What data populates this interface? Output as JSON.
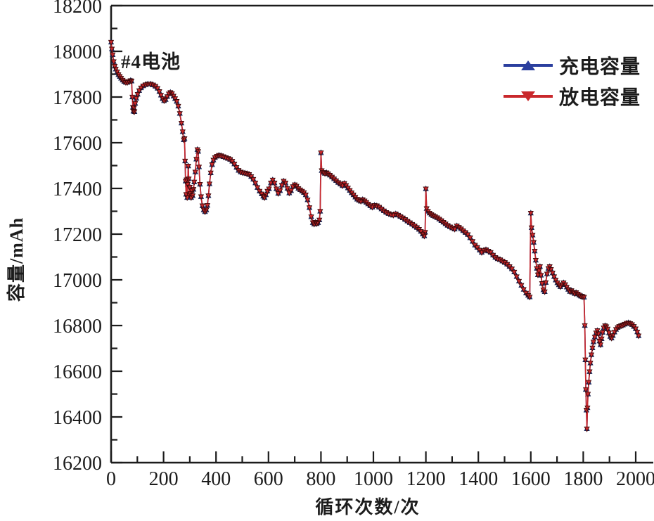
{
  "chart_data": {
    "type": "line",
    "title": "",
    "xlabel": "循环次数/次",
    "ylabel": "容量/mAh",
    "annotation": "#4电池",
    "xlim": [
      0,
      2070
    ],
    "ylim": [
      16200,
      18200
    ],
    "x_major_ticks": [
      0,
      200,
      400,
      600,
      800,
      1000,
      1200,
      1400,
      1600,
      1800,
      2000
    ],
    "x_minor_tick_step": 100,
    "y_major_ticks": [
      16200,
      16400,
      16600,
      16800,
      17000,
      17200,
      17400,
      17600,
      17800,
      18000,
      18200
    ],
    "y_minor_tick_step": 100,
    "grid": false,
    "legend_position": "top-right",
    "axis_color": "#1c1c1c",
    "series": [
      {
        "name": "充电容量",
        "color": "#2B3F9E",
        "marker_edge": "#17224f",
        "marker": "triangle-up",
        "points_key": "shared_points"
      },
      {
        "name": "放电容量",
        "color": "#C9282C",
        "marker_edge": "#3f090b",
        "marker": "triangle-down",
        "points_key": "shared_points"
      }
    ],
    "shared_points": [
      [
        0,
        18040
      ],
      [
        3,
        18010
      ],
      [
        6,
        17985
      ],
      [
        10,
        17955
      ],
      [
        14,
        17935
      ],
      [
        18,
        17922
      ],
      [
        23,
        17910
      ],
      [
        28,
        17898
      ],
      [
        33,
        17890
      ],
      [
        38,
        17882
      ],
      [
        44,
        17874
      ],
      [
        50,
        17868
      ],
      [
        56,
        17864
      ],
      [
        62,
        17864
      ],
      [
        68,
        17868
      ],
      [
        74,
        17872
      ],
      [
        78,
        17870
      ],
      [
        81,
        17800
      ],
      [
        83,
        17755
      ],
      [
        85,
        17738
      ],
      [
        87,
        17752
      ],
      [
        89,
        17736
      ],
      [
        92,
        17772
      ],
      [
        96,
        17794
      ],
      [
        101,
        17812
      ],
      [
        107,
        17828
      ],
      [
        114,
        17840
      ],
      [
        122,
        17849
      ],
      [
        131,
        17854
      ],
      [
        140,
        17857
      ],
      [
        150,
        17857
      ],
      [
        160,
        17853
      ],
      [
        169,
        17847
      ],
      [
        177,
        17838
      ],
      [
        184,
        17824
      ],
      [
        190,
        17808
      ],
      [
        196,
        17793
      ],
      [
        202,
        17784
      ],
      [
        208,
        17789
      ],
      [
        214,
        17802
      ],
      [
        220,
        17814
      ],
      [
        226,
        17820
      ],
      [
        232,
        17815
      ],
      [
        238,
        17804
      ],
      [
        244,
        17793
      ],
      [
        250,
        17781
      ],
      [
        256,
        17760
      ],
      [
        262,
        17728
      ],
      [
        268,
        17686
      ],
      [
        273,
        17648
      ],
      [
        277,
        17613
      ],
      [
        280,
        17618
      ],
      [
        282,
        17520
      ],
      [
        284,
        17432
      ],
      [
        286,
        17374
      ],
      [
        288,
        17438
      ],
      [
        290,
        17360
      ],
      [
        292,
        17418
      ],
      [
        294,
        17498
      ],
      [
        296,
        17442
      ],
      [
        298,
        17372
      ],
      [
        300,
        17406
      ],
      [
        302,
        17378
      ],
      [
        305,
        17360
      ],
      [
        308,
        17390
      ],
      [
        311,
        17368
      ],
      [
        314,
        17396
      ],
      [
        317,
        17428
      ],
      [
        321,
        17472
      ],
      [
        325,
        17528
      ],
      [
        329,
        17570
      ],
      [
        332,
        17562
      ],
      [
        335,
        17494
      ],
      [
        339,
        17418
      ],
      [
        343,
        17364
      ],
      [
        348,
        17324
      ],
      [
        353,
        17306
      ],
      [
        358,
        17298
      ],
      [
        363,
        17306
      ],
      [
        367,
        17326
      ],
      [
        371,
        17368
      ],
      [
        375,
        17420
      ],
      [
        380,
        17468
      ],
      [
        385,
        17504
      ],
      [
        390,
        17524
      ],
      [
        396,
        17535
      ],
      [
        403,
        17541
      ],
      [
        411,
        17545
      ],
      [
        419,
        17543
      ],
      [
        428,
        17539
      ],
      [
        437,
        17535
      ],
      [
        446,
        17531
      ],
      [
        454,
        17527
      ],
      [
        462,
        17519
      ],
      [
        470,
        17507
      ],
      [
        478,
        17492
      ],
      [
        486,
        17479
      ],
      [
        494,
        17472
      ],
      [
        502,
        17469
      ],
      [
        510,
        17467
      ],
      [
        518,
        17465
      ],
      [
        526,
        17461
      ],
      [
        534,
        17452
      ],
      [
        542,
        17440
      ],
      [
        550,
        17424
      ],
      [
        558,
        17404
      ],
      [
        566,
        17388
      ],
      [
        574,
        17376
      ],
      [
        580,
        17366
      ],
      [
        585,
        17360
      ],
      [
        590,
        17372
      ],
      [
        596,
        17388
      ],
      [
        602,
        17398
      ],
      [
        609,
        17424
      ],
      [
        616,
        17437
      ],
      [
        623,
        17424
      ],
      [
        630,
        17398
      ],
      [
        637,
        17378
      ],
      [
        644,
        17390
      ],
      [
        651,
        17414
      ],
      [
        658,
        17432
      ],
      [
        665,
        17424
      ],
      [
        672,
        17400
      ],
      [
        679,
        17380
      ],
      [
        686,
        17390
      ],
      [
        693,
        17408
      ],
      [
        700,
        17416
      ],
      [
        707,
        17410
      ],
      [
        714,
        17400
      ],
      [
        721,
        17394
      ],
      [
        728,
        17388
      ],
      [
        735,
        17382
      ],
      [
        742,
        17372
      ],
      [
        749,
        17350
      ],
      [
        756,
        17316
      ],
      [
        763,
        17276
      ],
      [
        769,
        17250
      ],
      [
        774,
        17244
      ],
      [
        779,
        17252
      ],
      [
        784,
        17246
      ],
      [
        789,
        17250
      ],
      [
        794,
        17262
      ],
      [
        797,
        17300
      ],
      [
        800,
        17556
      ],
      [
        803,
        17478
      ],
      [
        809,
        17470
      ],
      [
        815,
        17466
      ],
      [
        821,
        17469
      ],
      [
        827,
        17464
      ],
      [
        834,
        17458
      ],
      [
        842,
        17450
      ],
      [
        850,
        17442
      ],
      [
        858,
        17434
      ],
      [
        866,
        17426
      ],
      [
        874,
        17419
      ],
      [
        882,
        17412
      ],
      [
        889,
        17422
      ],
      [
        896,
        17413
      ],
      [
        903,
        17402
      ],
      [
        910,
        17391
      ],
      [
        917,
        17381
      ],
      [
        924,
        17372
      ],
      [
        931,
        17362
      ],
      [
        938,
        17353
      ],
      [
        945,
        17348
      ],
      [
        952,
        17344
      ],
      [
        959,
        17351
      ],
      [
        966,
        17346
      ],
      [
        973,
        17339
      ],
      [
        980,
        17332
      ],
      [
        988,
        17324
      ],
      [
        996,
        17318
      ],
      [
        1004,
        17326
      ],
      [
        1013,
        17324
      ],
      [
        1022,
        17318
      ],
      [
        1031,
        17310
      ],
      [
        1040,
        17302
      ],
      [
        1049,
        17295
      ],
      [
        1058,
        17290
      ],
      [
        1067,
        17286
      ],
      [
        1076,
        17283
      ],
      [
        1085,
        17289
      ],
      [
        1094,
        17283
      ],
      [
        1103,
        17277
      ],
      [
        1112,
        17271
      ],
      [
        1121,
        17264
      ],
      [
        1130,
        17257
      ],
      [
        1139,
        17250
      ],
      [
        1148,
        17243
      ],
      [
        1157,
        17236
      ],
      [
        1166,
        17229
      ],
      [
        1174,
        17221
      ],
      [
        1181,
        17212
      ],
      [
        1188,
        17200
      ],
      [
        1194,
        17192
      ],
      [
        1197,
        17208
      ],
      [
        1200,
        17398
      ],
      [
        1203,
        17312
      ],
      [
        1208,
        17300
      ],
      [
        1214,
        17292
      ],
      [
        1221,
        17286
      ],
      [
        1228,
        17281
      ],
      [
        1235,
        17277
      ],
      [
        1243,
        17272
      ],
      [
        1251,
        17266
      ],
      [
        1259,
        17259
      ],
      [
        1267,
        17252
      ],
      [
        1275,
        17245
      ],
      [
        1283,
        17238
      ],
      [
        1292,
        17232
      ],
      [
        1301,
        17227
      ],
      [
        1310,
        17222
      ],
      [
        1318,
        17236
      ],
      [
        1326,
        17230
      ],
      [
        1334,
        17223
      ],
      [
        1342,
        17215
      ],
      [
        1351,
        17207
      ],
      [
        1360,
        17198
      ],
      [
        1369,
        17184
      ],
      [
        1378,
        17168
      ],
      [
        1387,
        17152
      ],
      [
        1396,
        17142
      ],
      [
        1405,
        17130
      ],
      [
        1413,
        17120
      ],
      [
        1421,
        17128
      ],
      [
        1429,
        17132
      ],
      [
        1438,
        17126
      ],
      [
        1447,
        17120
      ],
      [
        1456,
        17108
      ],
      [
        1465,
        17098
      ],
      [
        1474,
        17092
      ],
      [
        1483,
        17088
      ],
      [
        1492,
        17082
      ],
      [
        1501,
        17076
      ],
      [
        1510,
        17068
      ],
      [
        1519,
        17058
      ],
      [
        1528,
        17048
      ],
      [
        1537,
        17034
      ],
      [
        1546,
        17014
      ],
      [
        1555,
        16994
      ],
      [
        1564,
        16976
      ],
      [
        1573,
        16958
      ],
      [
        1582,
        16942
      ],
      [
        1590,
        16932
      ],
      [
        1596,
        16925
      ],
      [
        1600,
        17292
      ],
      [
        1603,
        17228
      ],
      [
        1607,
        17196
      ],
      [
        1611,
        17164
      ],
      [
        1615,
        17126
      ],
      [
        1619,
        17086
      ],
      [
        1623,
        17050
      ],
      [
        1627,
        17022
      ],
      [
        1631,
        17040
      ],
      [
        1635,
        17058
      ],
      [
        1639,
        17020
      ],
      [
        1643,
        16984
      ],
      [
        1648,
        16956
      ],
      [
        1653,
        16948
      ],
      [
        1657,
        16988
      ],
      [
        1662,
        17026
      ],
      [
        1667,
        17050
      ],
      [
        1672,
        17058
      ],
      [
        1677,
        17046
      ],
      [
        1683,
        17030
      ],
      [
        1689,
        17014
      ],
      [
        1695,
        16999
      ],
      [
        1701,
        16987
      ],
      [
        1707,
        16978
      ],
      [
        1713,
        16970
      ],
      [
        1719,
        16979
      ],
      [
        1725,
        16987
      ],
      [
        1731,
        16979
      ],
      [
        1737,
        16968
      ],
      [
        1743,
        16958
      ],
      [
        1749,
        16949
      ],
      [
        1755,
        16953
      ],
      [
        1761,
        16946
      ],
      [
        1767,
        16940
      ],
      [
        1773,
        16944
      ],
      [
        1779,
        16938
      ],
      [
        1785,
        16933
      ],
      [
        1791,
        16929
      ],
      [
        1797,
        16927
      ],
      [
        1803,
        16924
      ],
      [
        1806,
        16800
      ],
      [
        1808,
        16650
      ],
      [
        1810,
        16520
      ],
      [
        1812,
        16430
      ],
      [
        1814,
        16348
      ],
      [
        1816,
        16440
      ],
      [
        1818,
        16500
      ],
      [
        1821,
        16552
      ],
      [
        1824,
        16598
      ],
      [
        1827,
        16636
      ],
      [
        1831,
        16672
      ],
      [
        1835,
        16702
      ],
      [
        1839,
        16728
      ],
      [
        1844,
        16750
      ],
      [
        1849,
        16768
      ],
      [
        1854,
        16778
      ],
      [
        1858,
        16764
      ],
      [
        1862,
        16732
      ],
      [
        1866,
        16716
      ],
      [
        1870,
        16742
      ],
      [
        1874,
        16770
      ],
      [
        1878,
        16790
      ],
      [
        1883,
        16799
      ],
      [
        1888,
        16795
      ],
      [
        1893,
        16785
      ],
      [
        1898,
        16768
      ],
      [
        1903,
        16752
      ],
      [
        1908,
        16745
      ],
      [
        1913,
        16756
      ],
      [
        1919,
        16771
      ],
      [
        1925,
        16783
      ],
      [
        1931,
        16791
      ],
      [
        1937,
        16796
      ],
      [
        1944,
        16799
      ],
      [
        1951,
        16802
      ],
      [
        1958,
        16806
      ],
      [
        1965,
        16810
      ],
      [
        1972,
        16812
      ],
      [
        1979,
        16809
      ],
      [
        1986,
        16804
      ],
      [
        1993,
        16796
      ],
      [
        2000,
        16786
      ],
      [
        2006,
        16772
      ],
      [
        2011,
        16755
      ]
    ]
  }
}
